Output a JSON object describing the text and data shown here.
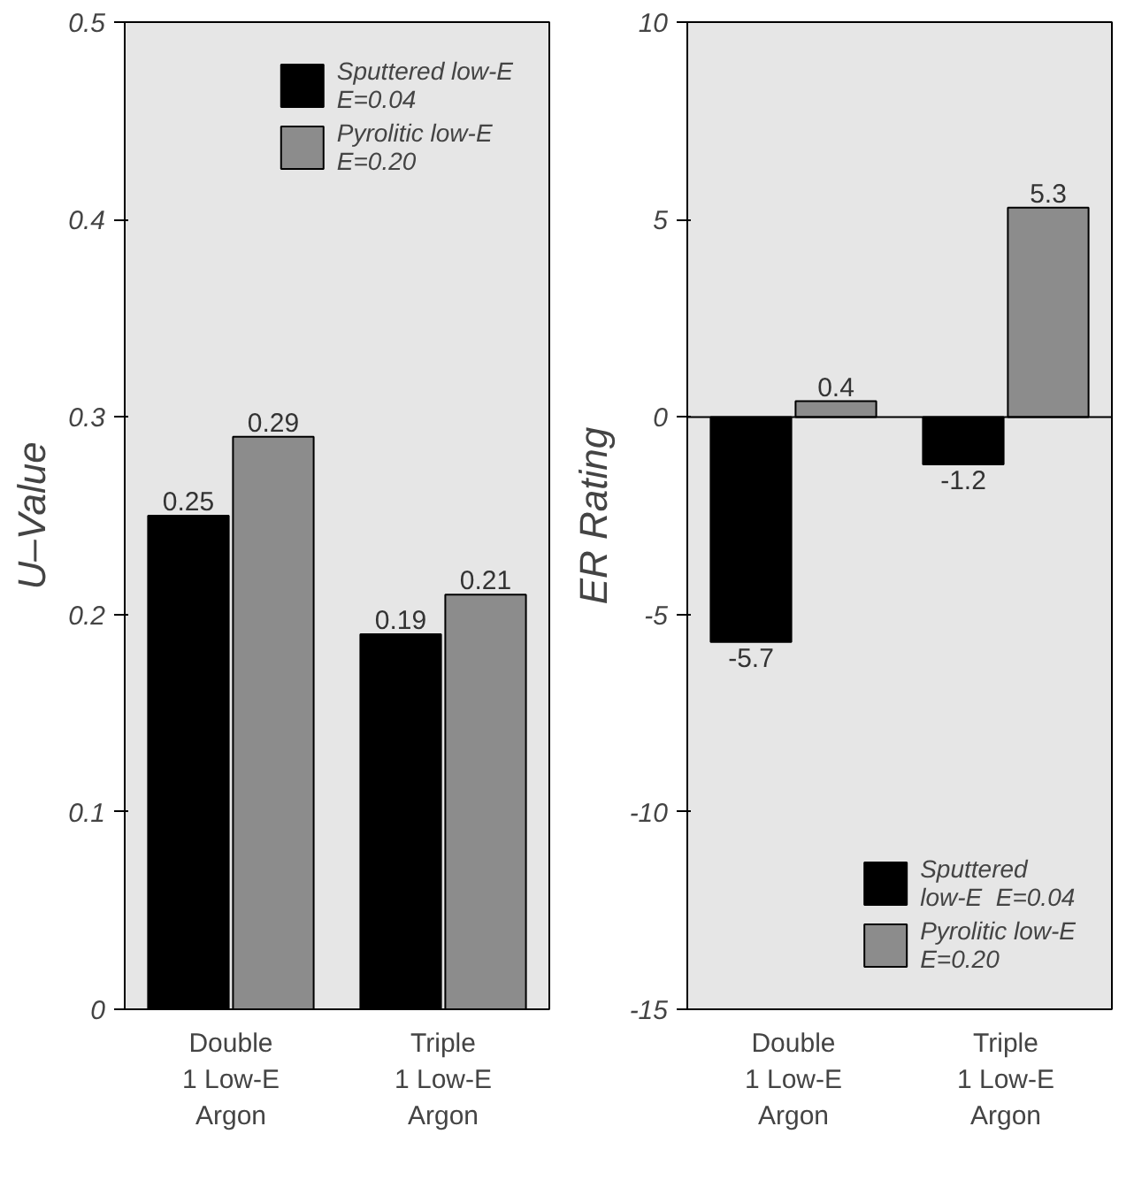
{
  "chart_data": [
    {
      "type": "bar",
      "ylabel": "U–Value",
      "categories": [
        "Double\n1 Low-E\nArgon",
        "Triple\n1 Low-E\nArgon"
      ],
      "ylim": [
        0,
        0.5
      ],
      "yticks": [
        0,
        0.1,
        0.2,
        0.3,
        0.4,
        0.5
      ],
      "data_labels": true,
      "legend": "top right",
      "grid": false,
      "series": [
        {
          "name": "Sputtered low-E\nE=0.04",
          "color": "#000000",
          "values": [
            0.25,
            0.19
          ]
        },
        {
          "name": "Pyrolitic low-E\nE=0.20",
          "color": "#8c8c8c",
          "values": [
            0.29,
            0.21
          ]
        }
      ]
    },
    {
      "type": "bar",
      "ylabel": "ER Rating",
      "categories": [
        "Double\n1 Low-E\nArgon",
        "Triple\n1 Low-E\nArgon"
      ],
      "ylim": [
        -15,
        10
      ],
      "yticks": [
        -15,
        -10,
        -5,
        0,
        5,
        10
      ],
      "data_labels": true,
      "legend": "bottom right",
      "grid": false,
      "ref_lines": [
        {
          "axis": "y",
          "value": 0,
          "color": "#000000"
        }
      ],
      "series": [
        {
          "name": "Sputtered\nlow-E  E=0.04",
          "color": "#000000",
          "values": [
            -5.7,
            -1.2
          ]
        },
        {
          "name": "Pyrolitic low-E\nE=0.20",
          "color": "#8c8c8c",
          "values": [
            0.4,
            5.3
          ]
        }
      ]
    }
  ]
}
